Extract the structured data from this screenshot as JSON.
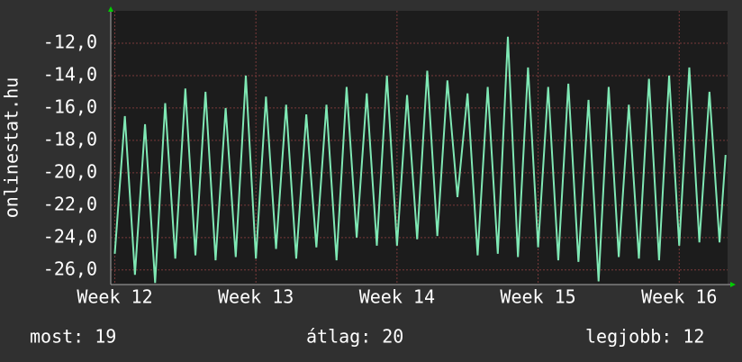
{
  "chart_data": {
    "type": "line",
    "ylabel": "onlinestat.hu",
    "x": [
      0,
      0.5,
      1,
      1.5,
      2,
      2.5,
      3,
      3.5,
      4,
      4.5,
      5,
      5.5,
      6,
      6.5,
      7,
      7.5,
      8,
      8.5,
      9,
      9.5,
      10,
      10.5,
      11,
      11.5,
      12,
      12.5,
      13,
      13.5,
      14,
      14.5,
      15,
      15.5,
      16,
      16.5,
      17,
      17.5,
      18,
      18.5,
      19,
      19.5,
      20,
      20.5,
      21,
      21.5,
      22,
      22.5,
      23,
      23.5,
      24,
      24.5,
      25,
      25.5,
      26,
      26.5,
      27,
      27.5,
      28,
      28.5,
      29,
      29.5,
      30,
      30.3
    ],
    "series": [
      {
        "color": "#7fe8b4",
        "values": [
          -25,
          -16.5,
          -26.3,
          -17,
          -26.8,
          -15.7,
          -25.3,
          -14.8,
          -25.1,
          -15.0,
          -25.4,
          -16,
          -25.2,
          -14,
          -25.3,
          -15.3,
          -24.7,
          -15.8,
          -25.3,
          -16.4,
          -24.6,
          -15.8,
          -25.4,
          -14.7,
          -24.0,
          -15.1,
          -24.5,
          -14.0,
          -24.5,
          -15.2,
          -24.1,
          -13.7,
          -23.9,
          -14.3,
          -21.5,
          -15.1,
          -25.1,
          -14.7,
          -25.0,
          -11.6,
          -25.2,
          -13.5,
          -24.6,
          -14.7,
          -25.4,
          -14.5,
          -25.5,
          -15.5,
          -26.7,
          -14.7,
          -25.2,
          -15.8,
          -25.3,
          -14.2,
          -25.4,
          -14.0,
          -24.5,
          -13.5,
          -24.3,
          -15.0,
          -24.3,
          -18.9
        ]
      }
    ],
    "xlim": [
      -0.2,
      30.4
    ],
    "xticks": [
      {
        "value": 0,
        "label": "Week 12"
      },
      {
        "value": 7,
        "label": "Week 13"
      },
      {
        "value": 14,
        "label": "Week 14"
      },
      {
        "value": 21,
        "label": "Week 15"
      },
      {
        "value": 28,
        "label": "Week 16"
      }
    ],
    "ylim": [
      -26.9,
      -10
    ],
    "yticks": [
      {
        "value": -26,
        "label": "-26,0"
      },
      {
        "value": -24,
        "label": "-24,0"
      },
      {
        "value": -22,
        "label": "-22,0"
      },
      {
        "value": -20,
        "label": "-20,0"
      },
      {
        "value": -18,
        "label": "-18,0"
      },
      {
        "value": -16,
        "label": "-16,0"
      },
      {
        "value": -14,
        "label": "-14,0"
      },
      {
        "value": -12,
        "label": "-12,0"
      }
    ],
    "grid": true,
    "footer": [
      {
        "label": "most:",
        "value": 19
      },
      {
        "label": "átlag:",
        "value": 20
      },
      {
        "label": "legjobb:",
        "value": 12
      }
    ]
  }
}
